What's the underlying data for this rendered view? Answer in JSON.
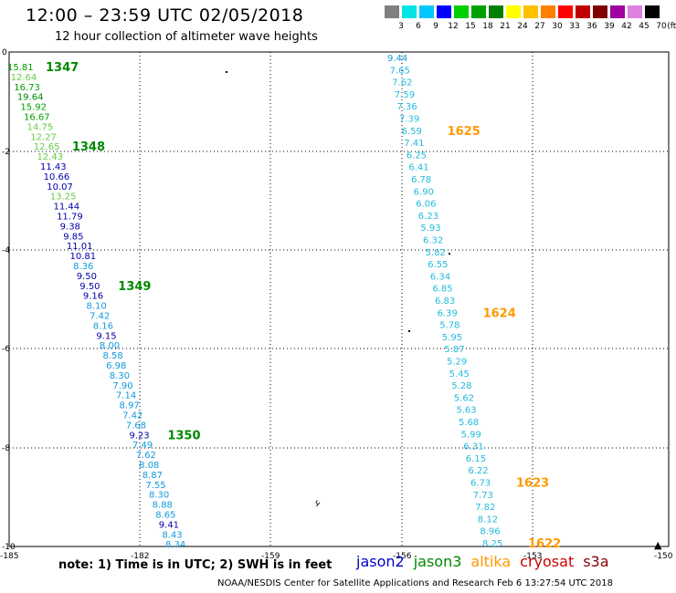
{
  "title": "12:00 – 23:59 UTC 02/05/2018",
  "subtitle": "12 hour collection of altimeter wave heights",
  "colorbar": {
    "unit": "(ft)",
    "labels": [
      "3",
      "6",
      "9",
      "12",
      "15",
      "18",
      "21",
      "24",
      "27",
      "30",
      "33",
      "36",
      "39",
      "42",
      "45",
      "70"
    ],
    "colors": [
      "#808080",
      "#00e5e5",
      "#00c8ff",
      "#0000ff",
      "#00d000",
      "#00a000",
      "#008000",
      "#ffff00",
      "#ffc000",
      "#ff8000",
      "#ff0000",
      "#c00000",
      "#800000",
      "#a000a0",
      "#e080e0",
      "#000000"
    ]
  },
  "axes": {
    "x_ticks": [
      "-185",
      "-182",
      "-159",
      "-156",
      "-153",
      "-150"
    ],
    "y_ticks": [
      "0",
      "-2",
      "-4",
      "-6",
      "-8",
      "-10"
    ]
  },
  "legend": {
    "items": [
      {
        "name": "jason2",
        "color": "#0000cc"
      },
      {
        "name": "jason3",
        "color": "#008800"
      },
      {
        "name": "altika",
        "color": "#ff9900"
      },
      {
        "name": "cryosat",
        "color": "#cc0000"
      },
      {
        "name": "s3a",
        "color": "#880000"
      }
    ]
  },
  "note": "note:  1) Time is in UTC; 2) SWH is in feet",
  "footer": "NOAA/NESDIS Center for Satellite Applications and Research    Feb  6 13:27:54 UTC 2018",
  "track1": {
    "values": [
      {
        "v": "15.81",
        "c": "#00a000"
      },
      {
        "v": "12.64",
        "c": "#66cc44"
      },
      {
        "v": "16.73",
        "c": "#00a000"
      },
      {
        "v": "19.64",
        "c": "#008800"
      },
      {
        "v": "15.92",
        "c": "#00a000"
      },
      {
        "v": "16.67",
        "c": "#00a000"
      },
      {
        "v": "14.75",
        "c": "#66cc44"
      },
      {
        "v": "12.27",
        "c": "#66cc44"
      },
      {
        "v": "12.65",
        "c": "#66cc44"
      },
      {
        "v": "12.43",
        "c": "#66cc44"
      },
      {
        "v": "11.43",
        "c": "#0000aa"
      },
      {
        "v": "10.66",
        "c": "#0000aa"
      },
      {
        "v": "10.07",
        "c": "#0000aa"
      },
      {
        "v": "13.25",
        "c": "#66cc44"
      },
      {
        "v": "11.44",
        "c": "#0000aa"
      },
      {
        "v": "11.79",
        "c": "#0000aa"
      },
      {
        "v": "9.38",
        "c": "#0000aa"
      },
      {
        "v": "9.85",
        "c": "#0000aa"
      },
      {
        "v": "11.01",
        "c": "#0000aa"
      },
      {
        "v": "10.81",
        "c": "#0000aa"
      },
      {
        "v": "8.36",
        "c": "#1199dd"
      },
      {
        "v": "9.50",
        "c": "#0000aa"
      },
      {
        "v": "9.50",
        "c": "#0000aa"
      },
      {
        "v": "9.16",
        "c": "#0000aa"
      },
      {
        "v": "8.10",
        "c": "#1199dd"
      },
      {
        "v": "7.42",
        "c": "#1199dd"
      },
      {
        "v": "8.16",
        "c": "#1199dd"
      },
      {
        "v": "9.15",
        "c": "#0000aa"
      },
      {
        "v": "8.00",
        "c": "#1199dd"
      },
      {
        "v": "8.58",
        "c": "#1199dd"
      },
      {
        "v": "6.98",
        "c": "#1199dd"
      },
      {
        "v": "8.30",
        "c": "#1199dd"
      },
      {
        "v": "7.90",
        "c": "#1199dd"
      },
      {
        "v": "7.14",
        "c": "#1199dd"
      },
      {
        "v": "8.97",
        "c": "#1199dd"
      },
      {
        "v": "7.42",
        "c": "#1199dd"
      },
      {
        "v": "7.68",
        "c": "#1199dd"
      },
      {
        "v": "9.23",
        "c": "#0000aa"
      },
      {
        "v": "7.49",
        "c": "#1199dd"
      },
      {
        "v": "7.62",
        "c": "#1199dd"
      },
      {
        "v": "8.08",
        "c": "#1199dd"
      },
      {
        "v": "8.87",
        "c": "#1199dd"
      },
      {
        "v": "7.55",
        "c": "#1199dd"
      },
      {
        "v": "8.30",
        "c": "#1199dd"
      },
      {
        "v": "8.88",
        "c": "#1199dd"
      },
      {
        "v": "8.65",
        "c": "#1199dd"
      },
      {
        "v": "9.41",
        "c": "#0000aa"
      },
      {
        "v": "8.43",
        "c": "#1199dd"
      },
      {
        "v": "8.34",
        "c": "#1199dd"
      }
    ],
    "time_labels": [
      {
        "t": "1347",
        "c": "#008800",
        "row": 0
      },
      {
        "t": "1348",
        "c": "#008800",
        "row": 8
      },
      {
        "t": "1349",
        "c": "#008800",
        "row": 22
      },
      {
        "t": "1350",
        "c": "#008800",
        "row": 37
      }
    ]
  },
  "track2": {
    "values": [
      {
        "v": "9.44",
        "c": "#1199dd"
      },
      {
        "v": "7.65",
        "c": "#22bbdd"
      },
      {
        "v": "7.62",
        "c": "#22bbdd"
      },
      {
        "v": "7.59",
        "c": "#22bbdd"
      },
      {
        "v": "7.36",
        "c": "#22bbdd"
      },
      {
        "v": "7.39",
        "c": "#22bbdd"
      },
      {
        "v": "6.59",
        "c": "#22bbdd"
      },
      {
        "v": "7.41",
        "c": "#22bbdd"
      },
      {
        "v": "6.25",
        "c": "#22bbdd"
      },
      {
        "v": "6.41",
        "c": "#22bbdd"
      },
      {
        "v": "6.78",
        "c": "#22bbdd"
      },
      {
        "v": "6.90",
        "c": "#22bbdd"
      },
      {
        "v": "6.06",
        "c": "#22bbdd"
      },
      {
        "v": "6.23",
        "c": "#22bbdd"
      },
      {
        "v": "5.93",
        "c": "#22bbdd"
      },
      {
        "v": "6.32",
        "c": "#22bbdd"
      },
      {
        "v": "5.82",
        "c": "#22bbdd"
      },
      {
        "v": "6.55",
        "c": "#22bbdd"
      },
      {
        "v": "6.34",
        "c": "#22bbdd"
      },
      {
        "v": "6.85",
        "c": "#22bbdd"
      },
      {
        "v": "6.83",
        "c": "#22bbdd"
      },
      {
        "v": "6.39",
        "c": "#22bbdd"
      },
      {
        "v": "5.78",
        "c": "#22bbdd"
      },
      {
        "v": "5.95",
        "c": "#22bbdd"
      },
      {
        "v": "5.87",
        "c": "#22bbdd"
      },
      {
        "v": "5.29",
        "c": "#22bbdd"
      },
      {
        "v": "5.45",
        "c": "#22bbdd"
      },
      {
        "v": "5.28",
        "c": "#22bbdd"
      },
      {
        "v": "5.62",
        "c": "#22bbdd"
      },
      {
        "v": "5.63",
        "c": "#22bbdd"
      },
      {
        "v": "5.68",
        "c": "#22bbdd"
      },
      {
        "v": "5.99",
        "c": "#22bbdd"
      },
      {
        "v": "6.31",
        "c": "#22bbdd"
      },
      {
        "v": "6.15",
        "c": "#22bbdd"
      },
      {
        "v": "6.22",
        "c": "#22bbdd"
      },
      {
        "v": "6.73",
        "c": "#22bbdd"
      },
      {
        "v": "7.73",
        "c": "#22bbdd"
      },
      {
        "v": "7.82",
        "c": "#22bbdd"
      },
      {
        "v": "8.12",
        "c": "#22bbdd"
      },
      {
        "v": "8.96",
        "c": "#22bbdd"
      },
      {
        "v": "8.25",
        "c": "#22bbdd"
      }
    ],
    "time_labels": [
      {
        "t": "1625",
        "c": "#ff9900",
        "row": 6
      },
      {
        "t": "1624",
        "c": "#ff9900",
        "row": 21
      },
      {
        "t": "1623",
        "c": "#ff9900",
        "row": 35
      },
      {
        "t": "1622",
        "c": "#ff9900",
        "row": 40
      }
    ]
  }
}
